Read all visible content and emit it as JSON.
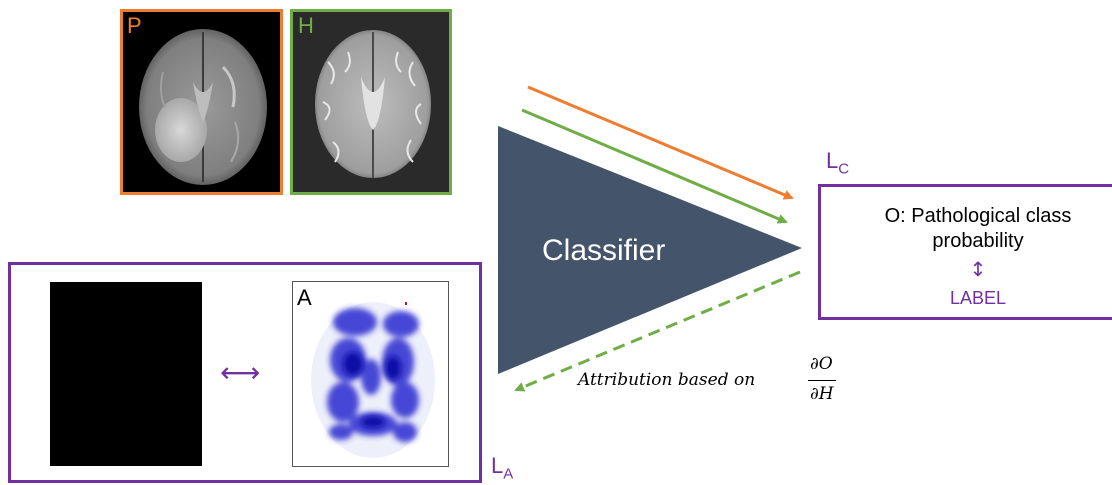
{
  "panels": {
    "pathological": {
      "label": "P",
      "color": "#ED7D31"
    },
    "healthy": {
      "label": "H",
      "color": "#70AD47"
    },
    "attribution": {
      "label": "A"
    }
  },
  "classifier": {
    "label": "Classifier",
    "color": "#44546A"
  },
  "output": {
    "line1": "O: Pathological class",
    "line2": "probability",
    "updown": "↕",
    "label": "LABEL",
    "loss_main": "L",
    "loss_sub": "C"
  },
  "lower_loss": {
    "main": "L",
    "sub": "A",
    "bidirectional": "⟷"
  },
  "attribution_text": {
    "prefix": "Attribution based on",
    "numerator": "∂O",
    "denominator": "∂H"
  },
  "colors": {
    "purple": "#7030A0",
    "orange": "#ED7D31",
    "green": "#70AD47",
    "classifier": "#44546A"
  }
}
